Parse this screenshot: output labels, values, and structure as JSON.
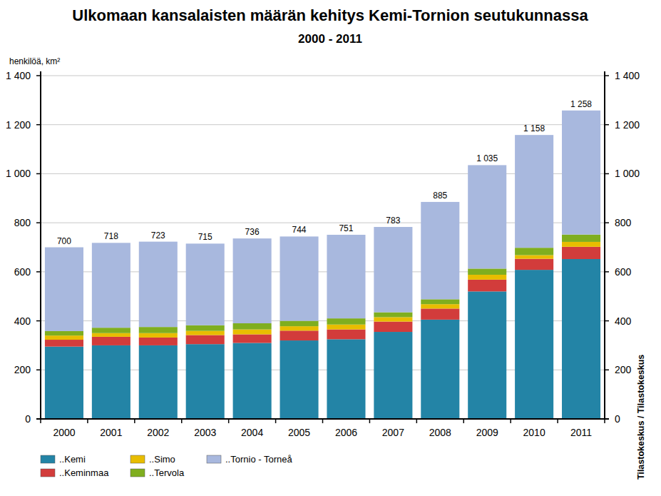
{
  "chart_data": {
    "type": "bar",
    "title": "Ulkomaan kansalaisten määrän kehitys Kemi-Tornion seutukunnassa",
    "subtitle": "2000 - 2011",
    "y_label": "henkilöä, km²",
    "source": "Tilastokeskus / Tilastokeskus",
    "categories": [
      "2000",
      "2001",
      "2002",
      "2003",
      "2004",
      "2005",
      "2006",
      "2007",
      "2008",
      "2009",
      "2010",
      "2011"
    ],
    "series": [
      {
        "name": "..Kemi",
        "color": "#2384a6",
        "values": [
          295,
          300,
          300,
          305,
          310,
          320,
          325,
          355,
          405,
          520,
          608,
          652
        ]
      },
      {
        "name": "..Keminmaa",
        "color": "#d23c3b",
        "values": [
          28,
          35,
          32,
          37,
          35,
          40,
          40,
          42,
          45,
          48,
          45,
          50
        ]
      },
      {
        "name": "..Simo",
        "color": "#e8bd00",
        "values": [
          17,
          15,
          18,
          17,
          20,
          18,
          20,
          18,
          18,
          20,
          15,
          20
        ]
      },
      {
        "name": "..Tervola",
        "color": "#7fae1f",
        "values": [
          18,
          22,
          25,
          23,
          25,
          22,
          25,
          20,
          20,
          25,
          30,
          30
        ]
      },
      {
        "name": "..Tornio - Torneå",
        "color": "#a8b8de",
        "values": [
          342,
          346,
          348,
          333,
          346,
          344,
          341,
          348,
          397,
          422,
          460,
          506
        ]
      }
    ],
    "totals": [
      700,
      718,
      723,
      715,
      736,
      744,
      751,
      783,
      885,
      1035,
      1158,
      1258
    ],
    "total_labels": [
      "700",
      "718",
      "723",
      "715",
      "736",
      "744",
      "751",
      "783",
      "885",
      "1 035",
      "1 158",
      "1 258"
    ],
    "ylim": [
      0,
      1400
    ],
    "yticks": [
      0,
      200,
      400,
      600,
      800,
      {
        "value": 1000,
        "label": "1 000"
      },
      {
        "value": 1200,
        "label": "1 200"
      },
      {
        "value": 1400,
        "label": "1 400"
      }
    ],
    "stacked": true,
    "grid": true,
    "legend": "bottom-left"
  }
}
